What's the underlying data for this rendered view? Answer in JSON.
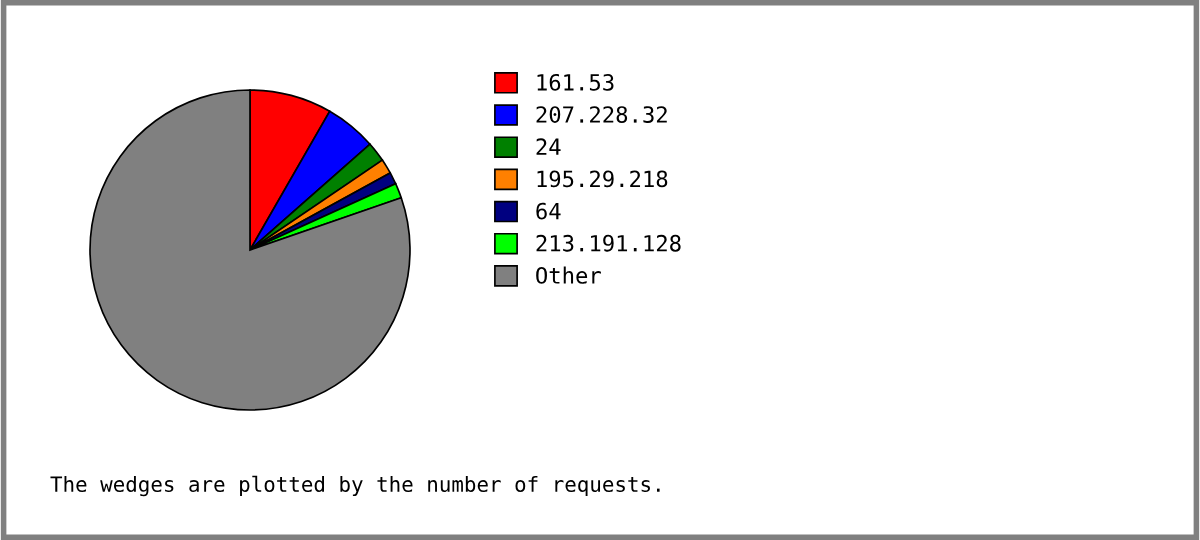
{
  "chart_data": {
    "type": "pie",
    "categories": [
      "161.53",
      "207.228.32",
      "24",
      "195.29.218",
      "64",
      "213.191.128",
      "Other"
    ],
    "values": [
      8.3,
      5.2,
      2.0,
      1.5,
      1.2,
      1.5,
      80.3
    ],
    "colors": [
      "#ff0000",
      "#0000ff",
      "#008000",
      "#ff8000",
      "#000080",
      "#00ff00",
      "#808080"
    ],
    "legend": "right",
    "annotations": [
      "The wedges are plotted by the number of requests."
    ]
  }
}
